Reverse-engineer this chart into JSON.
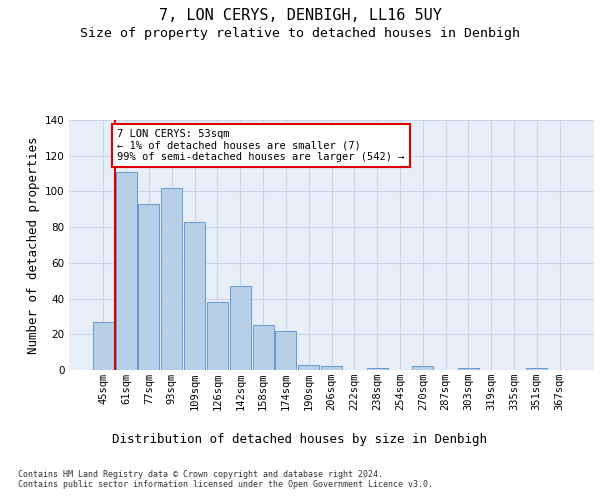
{
  "title1": "7, LON CERYS, DENBIGH, LL16 5UY",
  "title2": "Size of property relative to detached houses in Denbigh",
  "xlabel": "Distribution of detached houses by size in Denbigh",
  "ylabel": "Number of detached properties",
  "categories": [
    "45sqm",
    "61sqm",
    "77sqm",
    "93sqm",
    "109sqm",
    "126sqm",
    "142sqm",
    "158sqm",
    "174sqm",
    "190sqm",
    "206sqm",
    "222sqm",
    "238sqm",
    "254sqm",
    "270sqm",
    "287sqm",
    "303sqm",
    "319sqm",
    "335sqm",
    "351sqm",
    "367sqm"
  ],
  "values": [
    27,
    111,
    93,
    102,
    83,
    38,
    47,
    25,
    22,
    3,
    2,
    0,
    1,
    0,
    2,
    0,
    1,
    0,
    0,
    1,
    0
  ],
  "bar_color": "#b8cfe8",
  "bar_edge_color": "#6699cc",
  "grid_color": "#c8d4e8",
  "background_color": "#e8eef8",
  "annotation_box_text": "7 LON CERYS: 53sqm\n← 1% of detached houses are smaller (7)\n99% of semi-detached houses are larger (542) →",
  "annotation_box_color": "#ffffff",
  "annotation_box_edge_color": "#dd0000",
  "vline_color": "#dd0000",
  "ylim": [
    0,
    140
  ],
  "yticks": [
    0,
    20,
    40,
    60,
    80,
    100,
    120,
    140
  ],
  "footnote": "Contains HM Land Registry data © Crown copyright and database right 2024.\nContains public sector information licensed under the Open Government Licence v3.0.",
  "title_fontsize": 11,
  "subtitle_fontsize": 9.5,
  "tick_fontsize": 7.5,
  "ylabel_fontsize": 9,
  "xlabel_fontsize": 9,
  "annot_fontsize": 7.5,
  "footnote_fontsize": 6
}
